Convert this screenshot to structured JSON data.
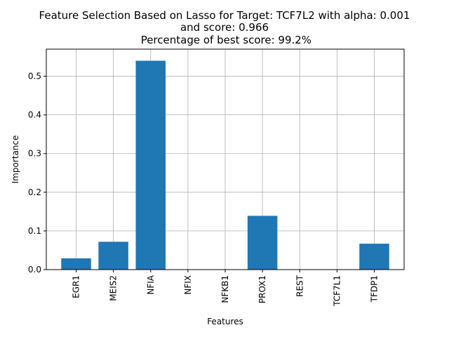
{
  "chart_data": {
    "type": "bar",
    "title_lines": [
      "Feature Selection Based on Lasso for Target: TCF7L2 with alpha: 0.001",
      "and score: 0.966",
      " Percentage of best score: 99.2%"
    ],
    "xlabel": "Features",
    "ylabel": "Importance",
    "categories": [
      "EGR1",
      "MEIS2",
      "NFIA",
      "NFIX",
      "NFKB1",
      "PROX1",
      "REST",
      "TCF7L1",
      "TFDP1"
    ],
    "values": [
      0.029,
      0.072,
      0.54,
      0.0,
      0.0,
      0.139,
      0.0,
      0.0,
      0.067
    ],
    "ylim": [
      0,
      0.57
    ],
    "yticks": [
      0.0,
      0.1,
      0.2,
      0.3,
      0.4,
      0.5
    ],
    "ytick_labels": [
      "0.0",
      "0.1",
      "0.2",
      "0.3",
      "0.4",
      "0.5"
    ],
    "bar_color": "#1f77b4",
    "grid": true
  }
}
